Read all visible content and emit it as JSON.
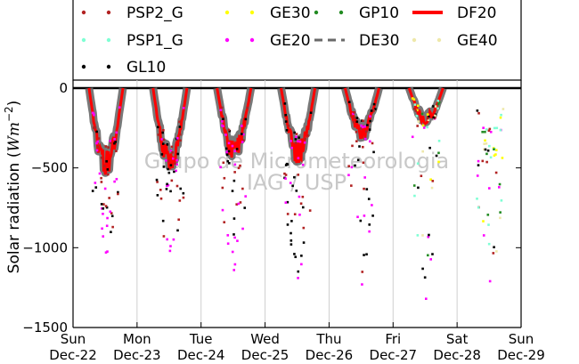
{
  "chart_data": {
    "type": "scatter",
    "title": "",
    "ylabel_parts": [
      "Solar radiation (",
      "W",
      "m",
      "−2",
      ")"
    ],
    "ylim": [
      -1500,
      50
    ],
    "yticks": [
      {
        "value": 0,
        "label": "0"
      },
      {
        "value": -500,
        "label": "−500"
      },
      {
        "value": -1000,
        "label": "−1000"
      },
      {
        "value": -1500,
        "label": "−1500"
      }
    ],
    "xlim": [
      0,
      7
    ],
    "xticks": [
      {
        "value": 0,
        "day": "Sun",
        "date": "Dec-22"
      },
      {
        "value": 1,
        "day": "Mon",
        "date": "Dec-23"
      },
      {
        "value": 2,
        "day": "Tue",
        "date": "Dec-24"
      },
      {
        "value": 3,
        "day": "Wed",
        "date": "Dec-25"
      },
      {
        "value": 4,
        "day": "Thu",
        "date": "Dec-26"
      },
      {
        "value": 5,
        "day": "Fri",
        "date": "Dec-27"
      },
      {
        "value": 6,
        "day": "Sat",
        "date": "Dec-28"
      },
      {
        "value": 7,
        "day": "Sun",
        "date": "Dec-29"
      }
    ],
    "grid": "vertical",
    "legend_location": "top",
    "watermark": [
      "Grupo de Micrometeorologia",
      "IAG / USP"
    ],
    "series": [
      {
        "name": "PSP2_G",
        "color": "#b22222",
        "marker": "dot"
      },
      {
        "name": "GE30",
        "color": "#ffff00",
        "marker": "dot"
      },
      {
        "name": "GP10",
        "color": "#228b22",
        "marker": "dot"
      },
      {
        "name": "DF20",
        "color": "#ff0000",
        "marker": "line"
      },
      {
        "name": "PSP1_G",
        "color": "#7fffd4",
        "marker": "dot"
      },
      {
        "name": "GE20",
        "color": "#ff00ff",
        "marker": "dot"
      },
      {
        "name": "DE30",
        "color": "#696969",
        "marker": "dash"
      },
      {
        "name": "GE40",
        "color": "#eee8aa",
        "marker": "dot"
      },
      {
        "name": "GL10",
        "color": "#000000",
        "marker": "dot"
      }
    ],
    "daily_peaks": [
      {
        "day": 0,
        "typical": -560,
        "min": -1030
      },
      {
        "day": 1,
        "typical": -540,
        "min": -1020
      },
      {
        "day": 2,
        "typical": -460,
        "min": -1140
      },
      {
        "day": 3,
        "typical": -470,
        "min": -1190
      },
      {
        "day": 4,
        "typical": -320,
        "min": -1230
      },
      {
        "day": 5,
        "typical": -230,
        "min": -1320
      },
      {
        "day": 6,
        "typical": -420,
        "min": -1210
      }
    ]
  }
}
